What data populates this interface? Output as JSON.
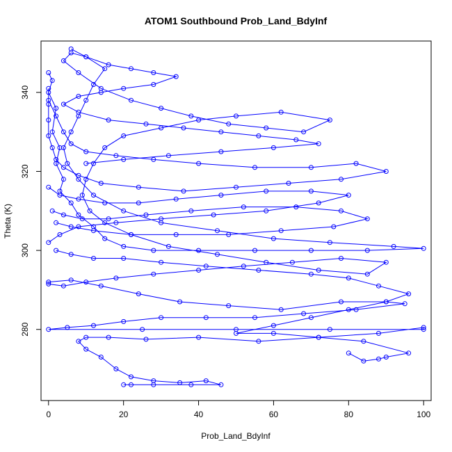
{
  "chart_data": {
    "type": "scatter",
    "title": "ATOM1 Southbound Prob_Land_BdyInf",
    "xlabel": "Prob_Land_BdyInf",
    "ylabel": "Theta (K)",
    "xlim": [
      -2,
      102
    ],
    "ylim": [
      262,
      353
    ],
    "xticks": [
      0,
      20,
      40,
      60,
      80,
      100
    ],
    "yticks": [
      280,
      300,
      320,
      340
    ],
    "grid": false,
    "legend": "none",
    "marker": "open-circle",
    "connected": true,
    "color": "#0000ff",
    "series": [
      {
        "points": [
          [
            0,
            345
          ],
          [
            1,
            343
          ],
          [
            0,
            340
          ],
          [
            2,
            336
          ],
          [
            1,
            330
          ],
          [
            3,
            326
          ],
          [
            2,
            322
          ],
          [
            4,
            318
          ],
          [
            3,
            315
          ],
          [
            6,
            312
          ],
          [
            8,
            309
          ],
          [
            12,
            306
          ],
          [
            15,
            303
          ],
          [
            20,
            301
          ],
          [
            28,
            300
          ],
          [
            40,
            300
          ],
          [
            55,
            300
          ],
          [
            70,
            300
          ],
          [
            85,
            300
          ],
          [
            100,
            300.5
          ],
          [
            92,
            301
          ],
          [
            75,
            302
          ],
          [
            60,
            303
          ],
          [
            45,
            305
          ],
          [
            30,
            307
          ],
          [
            20,
            310
          ],
          [
            12,
            314
          ],
          [
            8,
            318
          ],
          [
            5,
            322
          ],
          [
            4,
            326
          ],
          [
            6,
            330
          ],
          [
            8,
            334
          ],
          [
            10,
            338
          ],
          [
            12,
            342
          ],
          [
            15,
            346
          ],
          [
            10,
            349
          ],
          [
            6,
            350
          ],
          [
            4,
            348
          ],
          [
            8,
            345
          ],
          [
            14,
            341
          ],
          [
            22,
            338
          ],
          [
            30,
            336
          ],
          [
            38,
            334
          ],
          [
            48,
            332
          ],
          [
            58,
            331
          ],
          [
            68,
            330
          ],
          [
            75,
            333
          ],
          [
            62,
            335
          ],
          [
            50,
            334
          ],
          [
            40,
            333
          ],
          [
            30,
            331
          ],
          [
            20,
            329
          ],
          [
            15,
            326
          ],
          [
            12,
            322
          ],
          [
            10,
            318
          ],
          [
            9,
            314
          ],
          [
            11,
            310
          ],
          [
            15,
            307
          ],
          [
            22,
            304
          ],
          [
            32,
            301
          ],
          [
            45,
            299
          ],
          [
            58,
            297
          ],
          [
            72,
            295
          ],
          [
            85,
            294
          ],
          [
            90,
            297
          ],
          [
            78,
            298
          ],
          [
            65,
            297
          ],
          [
            52,
            296
          ],
          [
            40,
            295
          ],
          [
            28,
            294
          ],
          [
            18,
            293
          ],
          [
            10,
            292
          ],
          [
            4,
            291
          ],
          [
            0,
            291.5
          ],
          [
            0,
            292
          ],
          [
            6,
            292.5
          ],
          [
            14,
            291
          ],
          [
            24,
            289
          ],
          [
            35,
            287
          ],
          [
            48,
            286
          ],
          [
            62,
            285
          ],
          [
            78,
            287
          ],
          [
            90,
            287
          ],
          [
            95,
            286.5
          ],
          [
            82,
            285
          ],
          [
            68,
            284
          ],
          [
            55,
            283
          ],
          [
            42,
            283
          ],
          [
            30,
            283
          ],
          [
            20,
            282
          ],
          [
            12,
            281
          ],
          [
            5,
            280.5
          ],
          [
            0,
            280
          ],
          [
            25,
            280
          ],
          [
            50,
            280
          ],
          [
            75,
            280
          ],
          [
            100,
            280
          ],
          [
            100,
            280.5
          ],
          [
            88,
            279
          ],
          [
            72,
            278
          ],
          [
            56,
            277
          ],
          [
            40,
            278
          ],
          [
            26,
            277.5
          ],
          [
            16,
            278
          ],
          [
            10,
            278
          ],
          [
            8,
            277
          ],
          [
            10,
            275
          ],
          [
            14,
            273
          ],
          [
            18,
            270
          ],
          [
            22,
            268
          ],
          [
            28,
            267
          ],
          [
            35,
            266.5
          ],
          [
            42,
            267
          ],
          [
            46,
            266
          ],
          [
            38,
            266
          ],
          [
            28,
            266
          ],
          [
            20,
            266
          ],
          [
            22,
            266
          ]
        ]
      },
      {
        "points": [
          [
            0,
            338
          ],
          [
            2,
            334
          ],
          [
            4,
            330
          ],
          [
            6,
            327
          ],
          [
            10,
            325
          ],
          [
            18,
            324
          ],
          [
            28,
            323
          ],
          [
            40,
            322
          ],
          [
            55,
            321
          ],
          [
            70,
            321
          ],
          [
            82,
            322
          ],
          [
            90,
            320
          ],
          [
            78,
            318
          ],
          [
            64,
            317
          ],
          [
            50,
            316
          ],
          [
            36,
            315
          ],
          [
            24,
            316
          ],
          [
            14,
            317
          ],
          [
            8,
            319
          ],
          [
            4,
            321
          ],
          [
            2,
            323
          ],
          [
            1,
            326
          ],
          [
            0,
            329
          ],
          [
            0,
            333
          ],
          [
            0,
            337
          ],
          [
            0,
            341
          ]
        ]
      },
      {
        "points": [
          [
            1,
            310
          ],
          [
            4,
            309
          ],
          [
            9,
            308
          ],
          [
            16,
            308
          ],
          [
            26,
            309
          ],
          [
            38,
            310
          ],
          [
            52,
            311
          ],
          [
            66,
            311
          ],
          [
            78,
            310
          ],
          [
            85,
            308
          ],
          [
            76,
            306
          ],
          [
            62,
            305
          ],
          [
            48,
            304
          ],
          [
            34,
            304
          ],
          [
            22,
            304
          ],
          [
            12,
            305
          ],
          [
            6,
            306
          ],
          [
            2,
            307
          ]
        ]
      },
      {
        "points": [
          [
            2,
            300
          ],
          [
            6,
            299
          ],
          [
            12,
            298
          ],
          [
            20,
            298
          ],
          [
            30,
            297
          ],
          [
            42,
            296
          ],
          [
            56,
            295
          ],
          [
            70,
            294
          ],
          [
            80,
            293
          ],
          [
            88,
            291
          ],
          [
            96,
            289
          ],
          [
            90,
            287
          ],
          [
            80,
            285
          ],
          [
            70,
            283
          ],
          [
            60,
            281
          ],
          [
            50,
            279
          ],
          [
            60,
            279
          ],
          [
            72,
            278
          ],
          [
            84,
            277
          ],
          [
            96,
            274
          ],
          [
            90,
            273
          ],
          [
            88,
            272.5
          ],
          [
            84,
            272
          ],
          [
            80,
            274
          ]
        ]
      },
      {
        "points": [
          [
            6,
            351
          ],
          [
            10,
            349
          ],
          [
            16,
            347
          ],
          [
            22,
            346
          ],
          [
            28,
            345
          ],
          [
            34,
            344
          ],
          [
            28,
            342
          ],
          [
            20,
            341
          ],
          [
            14,
            340
          ],
          [
            8,
            339
          ],
          [
            4,
            337
          ],
          [
            8,
            335
          ],
          [
            16,
            333
          ],
          [
            26,
            332
          ],
          [
            36,
            331
          ],
          [
            46,
            330
          ],
          [
            56,
            329
          ],
          [
            66,
            328
          ],
          [
            72,
            327
          ],
          [
            60,
            326
          ],
          [
            46,
            325
          ],
          [
            32,
            324
          ],
          [
            20,
            323
          ],
          [
            10,
            322
          ]
        ]
      },
      {
        "points": [
          [
            0,
            316
          ],
          [
            3,
            314
          ],
          [
            8,
            313
          ],
          [
            15,
            312
          ],
          [
            24,
            312
          ],
          [
            34,
            313
          ],
          [
            46,
            314
          ],
          [
            58,
            315
          ],
          [
            70,
            315
          ],
          [
            80,
            314
          ],
          [
            72,
            312
          ],
          [
            58,
            310
          ],
          [
            44,
            309
          ],
          [
            30,
            308
          ],
          [
            18,
            307
          ],
          [
            8,
            306
          ],
          [
            3,
            304
          ],
          [
            0,
            302
          ]
        ]
      }
    ]
  }
}
